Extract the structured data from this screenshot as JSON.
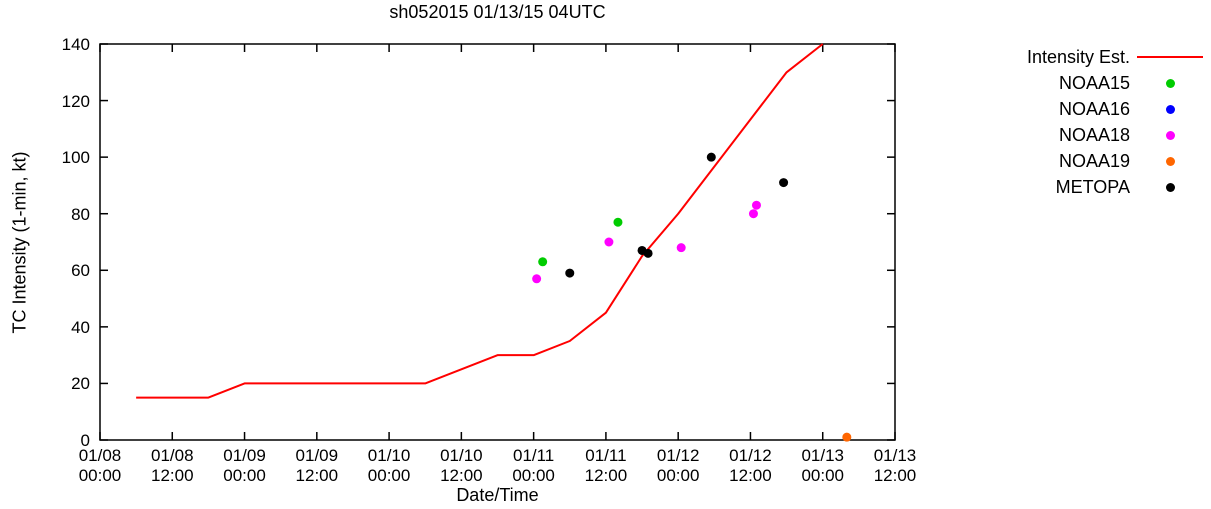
{
  "title": "sh052015 01/13/15 04UTC",
  "axes": {
    "y_label": "TC Intensity (1-min, kt)",
    "x_label": "Date/Time",
    "y_ticks": [
      0,
      20,
      40,
      60,
      80,
      100,
      120,
      140
    ],
    "x_ticks": [
      {
        "date": "01/08",
        "time": "00:00"
      },
      {
        "date": "01/08",
        "time": "12:00"
      },
      {
        "date": "01/09",
        "time": "00:00"
      },
      {
        "date": "01/09",
        "time": "12:00"
      },
      {
        "date": "01/10",
        "time": "00:00"
      },
      {
        "date": "01/10",
        "time": "12:00"
      },
      {
        "date": "01/11",
        "time": "00:00"
      },
      {
        "date": "01/11",
        "time": "12:00"
      },
      {
        "date": "01/12",
        "time": "00:00"
      },
      {
        "date": "01/12",
        "time": "12:00"
      },
      {
        "date": "01/13",
        "time": "00:00"
      },
      {
        "date": "01/13",
        "time": "12:00"
      }
    ]
  },
  "legend": {
    "position": "outside-right",
    "items": [
      {
        "label": "Intensity Est.",
        "marker": "line",
        "color": "#ff0000"
      },
      {
        "label": "NOAA15",
        "marker": "dot",
        "color": "#00cc00"
      },
      {
        "label": "NOAA16",
        "marker": "dot",
        "color": "#0000ff"
      },
      {
        "label": "NOAA18",
        "marker": "dot",
        "color": "#ff00ff"
      },
      {
        "label": "NOAA19",
        "marker": "dot",
        "color": "#ff6600"
      },
      {
        "label": "METOPA",
        "marker": "dot",
        "color": "#000000"
      }
    ]
  },
  "chart_data": {
    "type": "line+scatter",
    "title": "sh052015 01/13/15 04UTC",
    "xlabel": "Date/Time",
    "ylabel": "TC Intensity (1-min, kt)",
    "x_unit": "hours since 01/08 00:00",
    "xlim": [
      0,
      132
    ],
    "ylim": [
      0,
      140
    ],
    "x_tick_interval_hours": 12,
    "grid": false,
    "line_series": {
      "name": "Intensity Est.",
      "color": "#ff0000",
      "points": [
        [
          6,
          15
        ],
        [
          18,
          15
        ],
        [
          24,
          20
        ],
        [
          54,
          20
        ],
        [
          66,
          30
        ],
        [
          72,
          30
        ],
        [
          78,
          35
        ],
        [
          84,
          45
        ],
        [
          90,
          65
        ],
        [
          96,
          80
        ],
        [
          114,
          130
        ],
        [
          120,
          140
        ]
      ]
    },
    "scatter_series": [
      {
        "name": "NOAA15",
        "color": "#00cc00",
        "points": [
          [
            73.5,
            63
          ],
          [
            86,
            77
          ]
        ]
      },
      {
        "name": "NOAA16",
        "color": "#0000ff",
        "points": []
      },
      {
        "name": "NOAA18",
        "color": "#ff00ff",
        "points": [
          [
            72.5,
            57
          ],
          [
            84.5,
            70
          ],
          [
            96.5,
            68
          ],
          [
            108.5,
            80
          ],
          [
            109,
            83
          ]
        ]
      },
      {
        "name": "NOAA19",
        "color": "#ff6600",
        "points": [
          [
            124,
            1
          ]
        ]
      },
      {
        "name": "METOPA",
        "color": "#000000",
        "points": [
          [
            78,
            59
          ],
          [
            90,
            67
          ],
          [
            91,
            66
          ],
          [
            101.5,
            100
          ],
          [
            113.5,
            91
          ]
        ]
      }
    ]
  }
}
